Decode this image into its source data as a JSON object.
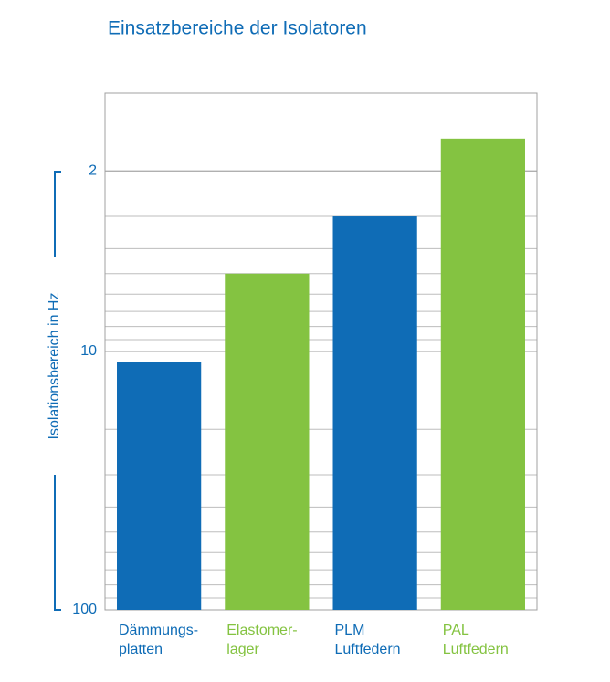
{
  "chart_data": {
    "type": "bar",
    "title": "Einsatzbereiche der Isolatoren",
    "y_label": "Isolationsbereich in Hz",
    "categories": [
      [
        "Dämmungs-",
        "platten"
      ],
      [
        "Elastomer-",
        "lager"
      ],
      [
        "PLM",
        "Luftfedern"
      ],
      [
        "PAL",
        "Luftfedern"
      ]
    ],
    "values": [
      11,
      5,
      3,
      1.5
    ],
    "colors": [
      "#0f6cb6",
      "#84c341",
      "#0f6cb6",
      "#84c341"
    ],
    "ylim": [
      100,
      1
    ],
    "yticks": [
      2,
      10,
      100
    ],
    "log_scale": true,
    "grid": true
  }
}
